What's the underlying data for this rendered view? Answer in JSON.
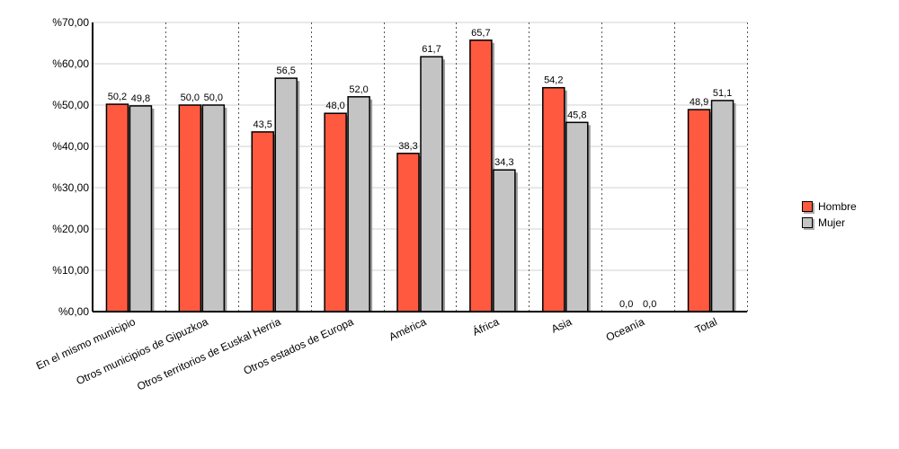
{
  "chart_data": {
    "type": "bar",
    "categories": [
      "En el mismo municipio",
      "Otros municipios de Gipuzkoa",
      "Otros territorios de Euskal Herria",
      "Otros estados de Europa",
      "América",
      "África",
      "Asia",
      "Oceanía",
      "Total"
    ],
    "series": [
      {
        "name": "Hombre",
        "color": "#ff5a40",
        "values": [
          50.2,
          50.0,
          43.5,
          48.0,
          38.3,
          65.7,
          54.2,
          0.0,
          48.9
        ],
        "labels": [
          "50,2",
          "50,0",
          "43,5",
          "48,0",
          "38,3",
          "65,7",
          "54,2",
          "0,0",
          "48,9"
        ]
      },
      {
        "name": "Mujer",
        "color": "#c4c4c4",
        "values": [
          49.8,
          50.0,
          56.5,
          52.0,
          61.7,
          34.3,
          45.8,
          0.0,
          51.1
        ],
        "labels": [
          "49,8",
          "50,0",
          "56,5",
          "52,0",
          "61,7",
          "34,3",
          "45,8",
          "0,0",
          "51,1"
        ]
      }
    ],
    "yticks": [
      0,
      10,
      20,
      30,
      40,
      50,
      60,
      70
    ],
    "ytick_labels": [
      "%0,00",
      "%10,00",
      "%20,00",
      "%30,00",
      "%40,00",
      "%50,00",
      "%60,00",
      "%70,00"
    ],
    "ylim": [
      0,
      70
    ],
    "grid": true,
    "legend_position": "right"
  }
}
